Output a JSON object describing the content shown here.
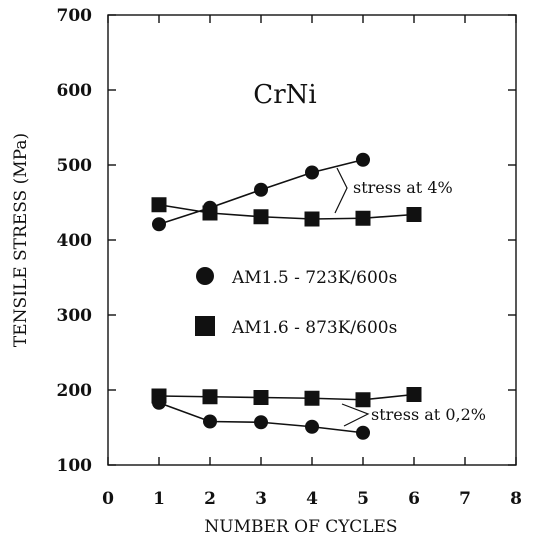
{
  "chart_data": {
    "type": "scatter",
    "title": "CrNi",
    "xlabel": "NUMBER OF CYCLES",
    "ylabel": "TENSILE STRESS (MPa)",
    "xlim": [
      0,
      8
    ],
    "ylim": [
      100,
      700
    ],
    "x_ticks": [
      0,
      1,
      2,
      3,
      4,
      5,
      6,
      7,
      8
    ],
    "y_ticks": [
      100,
      200,
      300,
      400,
      500,
      600,
      700
    ],
    "grid": false,
    "legend_position": "center",
    "series": [
      {
        "name": "AM1.5 - 723K/600s",
        "group": "stress at 4%",
        "marker": "circle",
        "x": [
          1,
          2,
          3,
          4,
          5
        ],
        "y": [
          421,
          443,
          467,
          490,
          507
        ]
      },
      {
        "name": "AM1.6 - 873K/600s",
        "group": "stress at 4%",
        "marker": "square",
        "x": [
          1,
          2,
          3,
          4,
          5,
          6
        ],
        "y": [
          447,
          436,
          431,
          428,
          429,
          434
        ]
      },
      {
        "name": "AM1.6 - 873K/600s",
        "group": "stress at 0,2%",
        "marker": "square",
        "x": [
          1,
          2,
          3,
          4,
          5,
          6
        ],
        "y": [
          192,
          191,
          190,
          189,
          187,
          194
        ]
      },
      {
        "name": "AM1.5 - 723K/600s",
        "group": "stress at 0,2%",
        "marker": "circle",
        "x": [
          1,
          2,
          3,
          4,
          5
        ],
        "y": [
          183,
          158,
          157,
          151,
          143
        ]
      }
    ],
    "annotations": [
      "stress at 4%",
      "stress at 0,2%"
    ]
  }
}
